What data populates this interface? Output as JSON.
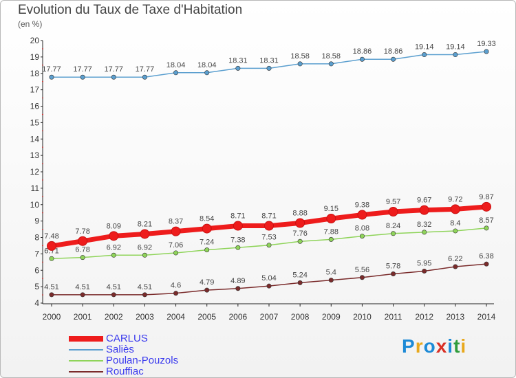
{
  "title": "Evolution du Taux de Taxe d'Habitation",
  "subtitle": "(en %)",
  "logo": {
    "text": "Proxiti",
    "colors": [
      "#1d8ad6",
      "#e8a81c",
      "#1d8ad6",
      "#d93025",
      "#1d8ad6",
      "#2f9c3d",
      "#e8a81c"
    ]
  },
  "chart_data": {
    "type": "line",
    "x": [
      2000,
      2001,
      2002,
      2003,
      2004,
      2005,
      2006,
      2007,
      2008,
      2009,
      2010,
      2011,
      2012,
      2013,
      2014
    ],
    "ylim": [
      4,
      20
    ],
    "yticks": [
      4,
      5,
      6,
      7,
      8,
      9,
      10,
      11,
      12,
      13,
      14,
      15,
      16,
      17,
      18,
      19,
      20
    ],
    "grid": false,
    "legend_position": "bottom-left",
    "series": [
      {
        "name": "Saliès",
        "color": "#5b9fcf",
        "values": [
          17.77,
          17.77,
          17.77,
          17.77,
          18.04,
          18.04,
          18.31,
          18.31,
          18.58,
          18.58,
          18.86,
          18.86,
          19.14,
          19.14,
          19.33
        ],
        "labels": [
          "17.77",
          "17.77",
          "17.77",
          "17.77",
          "18.04",
          "18.04",
          "18.31",
          "18.31",
          "18.58",
          "18.58",
          "18.86",
          "18.86",
          "19.14",
          "19.14",
          "19.33"
        ]
      },
      {
        "name": "Poulan-Pouzols",
        "color": "#8fd45a",
        "values": [
          6.71,
          6.78,
          6.92,
          6.92,
          7.06,
          7.24,
          7.38,
          7.53,
          7.76,
          7.88,
          8.08,
          8.24,
          8.32,
          8.4,
          8.57
        ],
        "labels": [
          "6.71",
          "6.78",
          "6.92",
          "6.92",
          "7.06",
          "7.24",
          "7.38",
          "7.53",
          "7.76",
          "7.88",
          "8.08",
          "8.24",
          "8.32",
          "8.4",
          "8.57"
        ]
      },
      {
        "name": "Rouffiac",
        "color": "#7a2b2b",
        "values": [
          4.51,
          4.51,
          4.51,
          4.51,
          4.6,
          4.79,
          4.89,
          5.04,
          5.24,
          5.4,
          5.56,
          5.78,
          5.95,
          6.22,
          6.38
        ],
        "labels": [
          "4.51",
          "4.51",
          "4.51",
          "4.51",
          "4.6",
          "4.79",
          "4.89",
          "5.04",
          "5.24",
          "5.4",
          "5.56",
          "5.78",
          "5.95",
          "6.22",
          "6.38"
        ]
      },
      {
        "name": "CARLUS",
        "color": "#ee1c1c",
        "values": [
          7.48,
          7.78,
          8.09,
          8.21,
          8.37,
          8.54,
          8.71,
          8.71,
          8.88,
          9.15,
          9.38,
          9.57,
          9.67,
          9.72,
          9.87
        ],
        "labels": [
          "7.48",
          "7.78",
          "8.09",
          "8.21",
          "8.37",
          "8.54",
          "8.71",
          "8.71",
          "8.88",
          "9.15",
          "9.38",
          "9.57",
          "9.67",
          "9.72",
          "9.87"
        ]
      }
    ],
    "legend": [
      {
        "name": "CARLUS",
        "color": "#ee1c1c"
      },
      {
        "name": "Saliès",
        "color": "#5b9fcf"
      },
      {
        "name": "Poulan-Pouzols",
        "color": "#8fd45a"
      },
      {
        "name": "Rouffiac",
        "color": "#7a2b2b"
      }
    ],
    "legend_text_color": "#3a3aee"
  }
}
